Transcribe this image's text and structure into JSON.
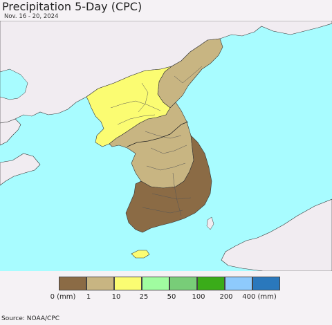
{
  "title": "Precipitation 5-Day (CPC)",
  "date": "Nov. 16 - 20, 2024",
  "source": "Source: NOAA/CPC",
  "colors": {
    "sea": "#a8fcff",
    "land": "#f1ecf1",
    "border": "#333333",
    "class_0_1": "#8b6b45",
    "class_1_10": "#c8b582",
    "class_10_25": "#fbfc72"
  },
  "legend": {
    "swatch_colors": [
      "#8b6b45",
      "#c8b582",
      "#fbfc72",
      "#a0fca0",
      "#78cd78",
      "#3aac19",
      "#8ecafc",
      "#2a78bc"
    ],
    "ticks": [
      "0 (mm)",
      "1",
      "10",
      "25",
      "50",
      "100",
      "200",
      "400 (mm)"
    ]
  }
}
